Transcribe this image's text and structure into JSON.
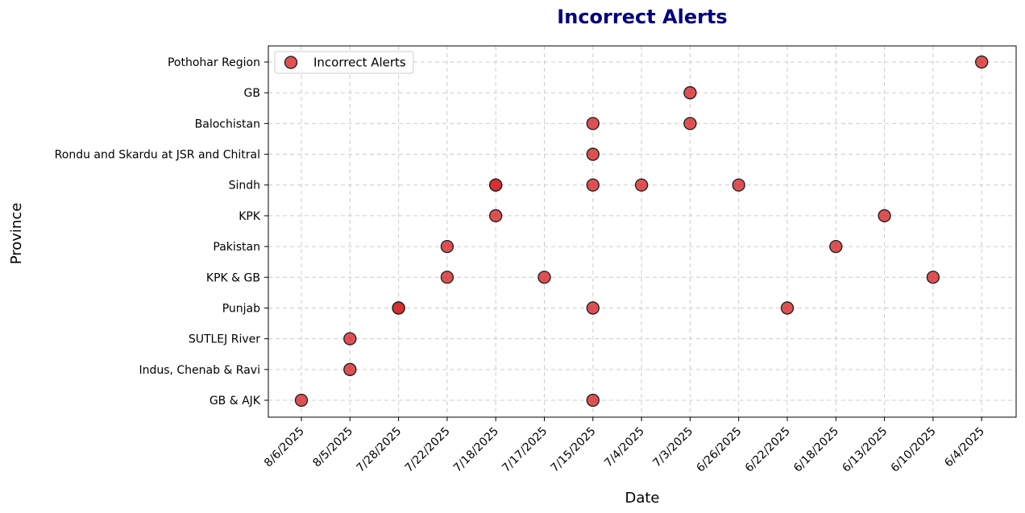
{
  "chart_data": {
    "type": "scatter",
    "title": "Incorrect Alerts",
    "xlabel": "Date",
    "ylabel": "Province",
    "categories_x": [
      "8/6/2025",
      "8/5/2025",
      "7/28/2025",
      "7/22/2025",
      "7/18/2025",
      "7/17/2025",
      "7/15/2025",
      "7/4/2025",
      "7/3/2025",
      "6/26/2025",
      "6/22/2025",
      "6/18/2025",
      "6/13/2025",
      "6/10/2025",
      "6/4/2025"
    ],
    "categories_y": [
      "GB & AJK",
      "Indus, Chenab & Ravi",
      "SUTLEJ River",
      "Punjab",
      "KPK & GB",
      "Pakistan",
      "KPK",
      "Sindh",
      "Rondu and Skardu at JSR and Chitral",
      "Balochistan",
      "GB",
      "Pothohar Region"
    ],
    "grid": true,
    "legend_position": "top-left",
    "series": [
      {
        "name": "Incorrect Alerts",
        "color": "#d62728",
        "points": [
          {
            "x": "8/6/2025",
            "y": "GB & AJK"
          },
          {
            "x": "8/5/2025",
            "y": "Indus, Chenab & Ravi"
          },
          {
            "x": "8/5/2025",
            "y": "SUTLEJ River"
          },
          {
            "x": "7/28/2025",
            "y": "Punjab"
          },
          {
            "x": "7/28/2025",
            "y": "Punjab"
          },
          {
            "x": "7/22/2025",
            "y": "KPK & GB"
          },
          {
            "x": "7/22/2025",
            "y": "Pakistan"
          },
          {
            "x": "7/18/2025",
            "y": "KPK"
          },
          {
            "x": "7/18/2025",
            "y": "Sindh"
          },
          {
            "x": "7/18/2025",
            "y": "Sindh"
          },
          {
            "x": "7/17/2025",
            "y": "KPK & GB"
          },
          {
            "x": "7/15/2025",
            "y": "GB & AJK"
          },
          {
            "x": "7/15/2025",
            "y": "Punjab"
          },
          {
            "x": "7/15/2025",
            "y": "Sindh"
          },
          {
            "x": "7/15/2025",
            "y": "Rondu and Skardu at JSR and Chitral"
          },
          {
            "x": "7/15/2025",
            "y": "Balochistan"
          },
          {
            "x": "7/4/2025",
            "y": "Sindh"
          },
          {
            "x": "7/3/2025",
            "y": "Balochistan"
          },
          {
            "x": "7/3/2025",
            "y": "GB"
          },
          {
            "x": "6/26/2025",
            "y": "Sindh"
          },
          {
            "x": "6/22/2025",
            "y": "Punjab"
          },
          {
            "x": "6/18/2025",
            "y": "Pakistan"
          },
          {
            "x": "6/13/2025",
            "y": "KPK"
          },
          {
            "x": "6/10/2025",
            "y": "KPK & GB"
          },
          {
            "x": "6/4/2025",
            "y": "Pothohar Region"
          }
        ]
      }
    ],
    "title_color": "#000080",
    "marker_edge_color": "#1a1a1a"
  }
}
